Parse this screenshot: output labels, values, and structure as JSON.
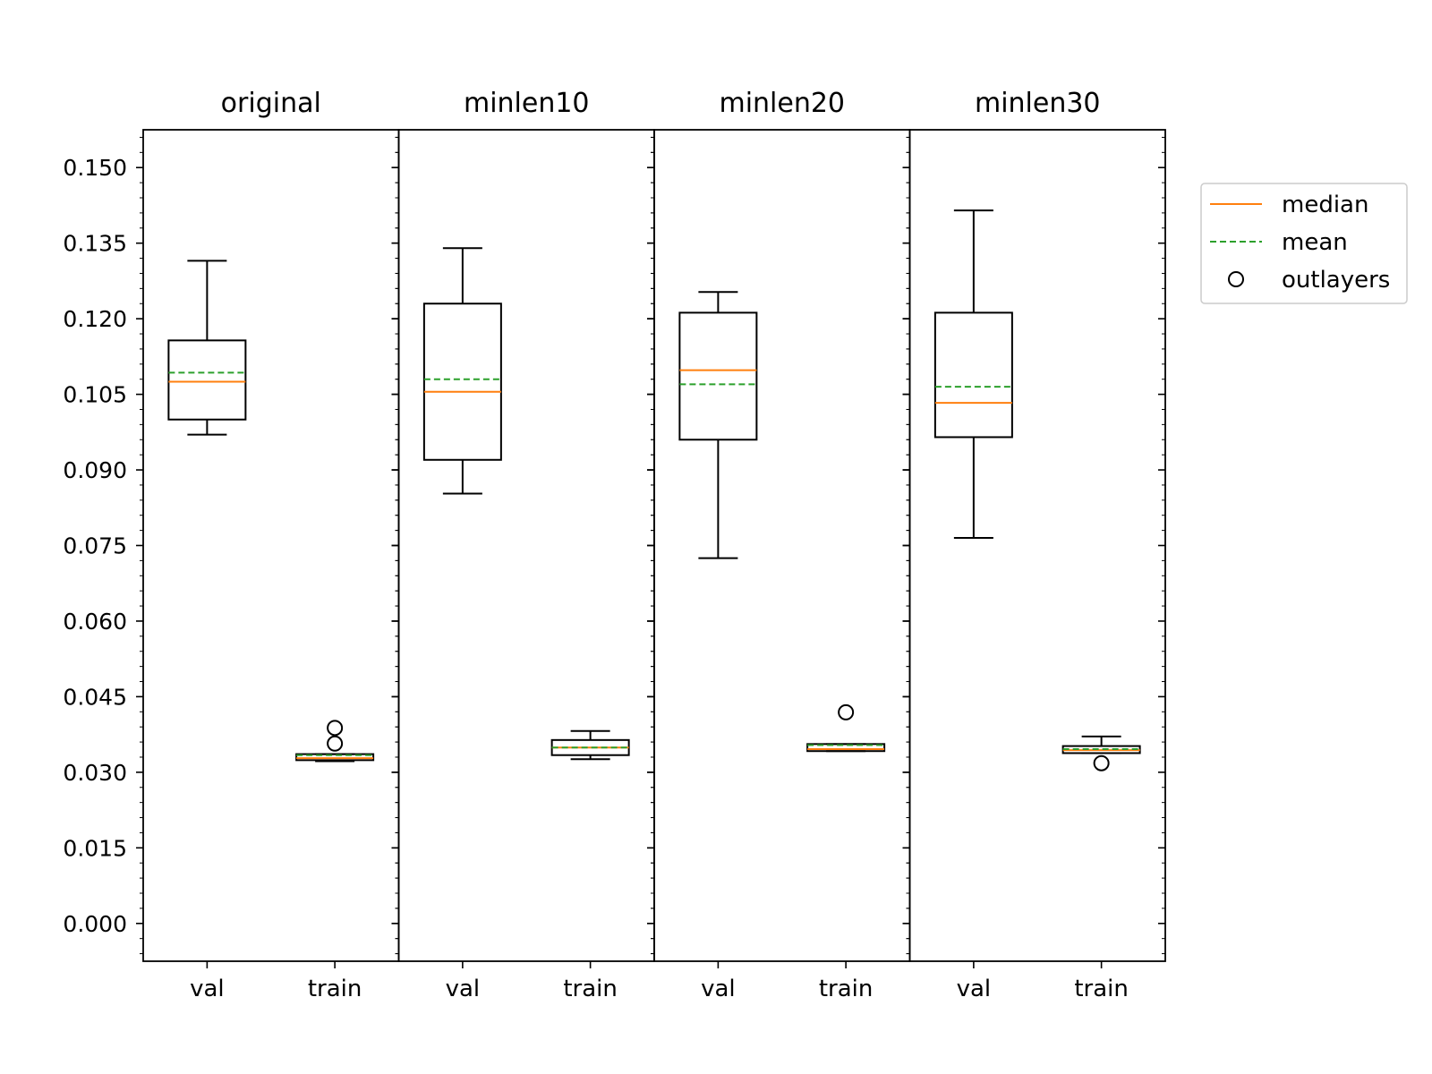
{
  "chart_data": {
    "type": "boxplot",
    "y_ticks": [
      "0.000",
      "0.015",
      "0.030",
      "0.045",
      "0.060",
      "0.075",
      "0.090",
      "0.105",
      "0.120",
      "0.135",
      "0.150"
    ],
    "ylim": [
      -0.0075,
      0.1575
    ],
    "categories": [
      "val",
      "train"
    ],
    "panels": [
      {
        "title": "original",
        "boxes": [
          {
            "label": "val",
            "whislo": 0.097,
            "q1": 0.1,
            "med": 0.1075,
            "mean": 0.1093,
            "q3": 0.1157,
            "whishi": 0.1315,
            "fliers": []
          },
          {
            "label": "train",
            "whislo": 0.0322,
            "q1": 0.0324,
            "med": 0.0328,
            "mean": 0.0334,
            "q3": 0.0336,
            "whishi": 0.0336,
            "fliers": [
              0.0357,
              0.0388
            ]
          }
        ]
      },
      {
        "title": "minlen10",
        "boxes": [
          {
            "label": "val",
            "whislo": 0.0853,
            "q1": 0.092,
            "med": 0.1055,
            "mean": 0.108,
            "q3": 0.123,
            "whishi": 0.134,
            "fliers": []
          },
          {
            "label": "train",
            "whislo": 0.0326,
            "q1": 0.0334,
            "med": 0.0349,
            "mean": 0.0349,
            "q3": 0.0364,
            "whishi": 0.0382,
            "fliers": []
          }
        ]
      },
      {
        "title": "minlen20",
        "boxes": [
          {
            "label": "val",
            "whislo": 0.0725,
            "q1": 0.096,
            "med": 0.1098,
            "mean": 0.107,
            "q3": 0.1212,
            "whishi": 0.1253,
            "fliers": []
          },
          {
            "label": "train",
            "whislo": 0.0342,
            "q1": 0.0342,
            "med": 0.0346,
            "mean": 0.0354,
            "q3": 0.0356,
            "whishi": 0.0356,
            "fliers": [
              0.0419
            ]
          }
        ]
      },
      {
        "title": "minlen30",
        "boxes": [
          {
            "label": "val",
            "whislo": 0.0765,
            "q1": 0.0965,
            "med": 0.1033,
            "mean": 0.1065,
            "q3": 0.1212,
            "whishi": 0.1415,
            "fliers": []
          },
          {
            "label": "train",
            "whislo": 0.0338,
            "q1": 0.0338,
            "med": 0.0344,
            "mean": 0.0346,
            "q3": 0.0352,
            "whishi": 0.0371,
            "fliers": [
              0.0318
            ]
          }
        ]
      }
    ],
    "legend": {
      "placement": "right",
      "items": [
        {
          "label": "median",
          "style": "solid-line",
          "color": "#ff7f0e"
        },
        {
          "label": "mean",
          "style": "dashed-line",
          "color": "#2ca02c"
        },
        {
          "label": "outlayers",
          "style": "circle-marker",
          "color": "#000000"
        }
      ]
    },
    "colors": {
      "box": "#000000",
      "median": "#ff7f0e",
      "mean": "#2ca02c"
    }
  }
}
